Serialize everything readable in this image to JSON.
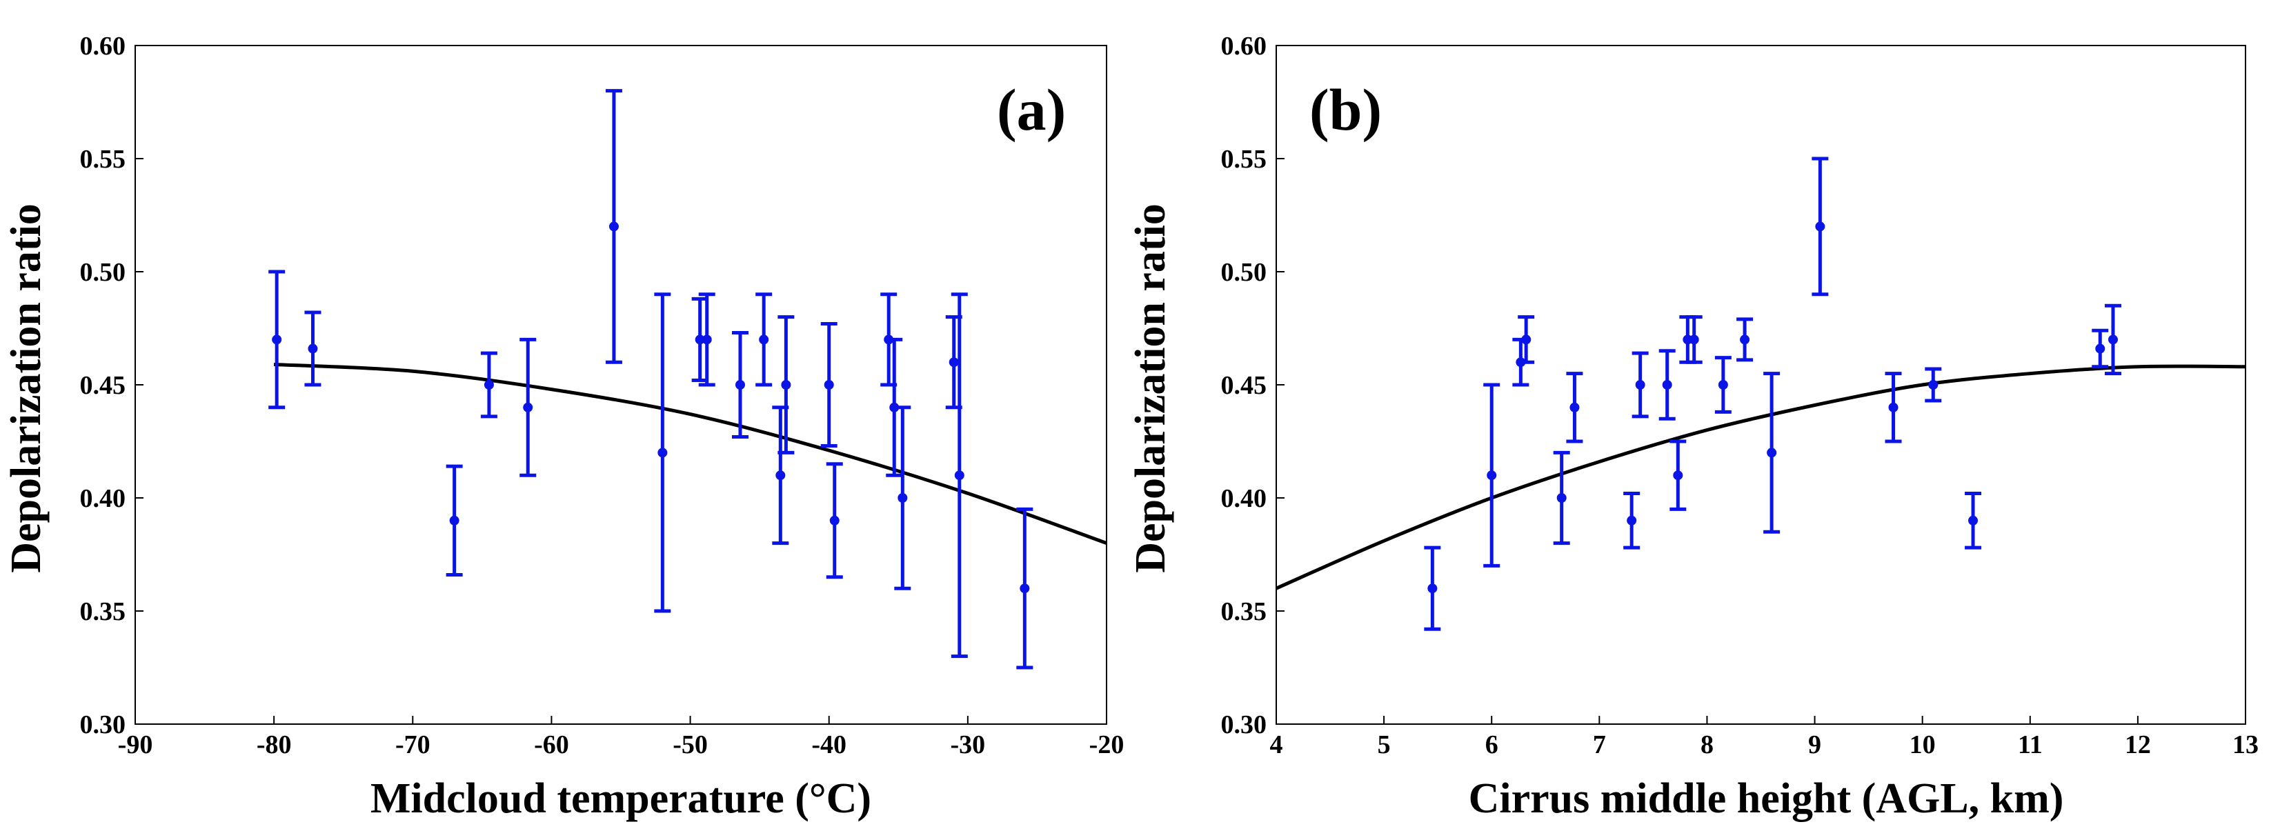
{
  "chart_data": [
    {
      "type": "scatter",
      "panel_label": "(a)",
      "xlabel": "Midcloud temperature (°C)",
      "ylabel": "Depolarization ratio",
      "xlim": [
        -90,
        -20
      ],
      "ylim": [
        0.3,
        0.6
      ],
      "xticks": [
        -90,
        -80,
        -70,
        -60,
        -50,
        -40,
        -30,
        -20
      ],
      "yticks": [
        0.3,
        0.35,
        0.4,
        0.45,
        0.5,
        0.55,
        0.6
      ],
      "tick_decimals": 2,
      "grid": false,
      "point_color": "#0a14e6",
      "fit_color": "#000000",
      "points": [
        {
          "x": -79.8,
          "y": 0.47,
          "err": 0.03
        },
        {
          "x": -77.2,
          "y": 0.466,
          "err": 0.016
        },
        {
          "x": -67.0,
          "y": 0.39,
          "err": 0.024
        },
        {
          "x": -64.5,
          "y": 0.45,
          "err": 0.014
        },
        {
          "x": -61.7,
          "y": 0.44,
          "err": 0.03
        },
        {
          "x": -55.5,
          "y": 0.52,
          "err": 0.06
        },
        {
          "x": -52.0,
          "y": 0.42,
          "err": 0.07
        },
        {
          "x": -49.3,
          "y": 0.47,
          "err": 0.018
        },
        {
          "x": -48.8,
          "y": 0.47,
          "err": 0.02
        },
        {
          "x": -46.4,
          "y": 0.45,
          "err": 0.023
        },
        {
          "x": -44.7,
          "y": 0.47,
          "err": 0.02
        },
        {
          "x": -43.5,
          "y": 0.41,
          "err": 0.03
        },
        {
          "x": -43.1,
          "y": 0.45,
          "err": 0.03
        },
        {
          "x": -40.0,
          "y": 0.45,
          "err": 0.027
        },
        {
          "x": -39.6,
          "y": 0.39,
          "err": 0.025
        },
        {
          "x": -35.7,
          "y": 0.47,
          "err": 0.02
        },
        {
          "x": -35.3,
          "y": 0.44,
          "err": 0.03
        },
        {
          "x": -34.7,
          "y": 0.4,
          "err": 0.04
        },
        {
          "x": -31.0,
          "y": 0.46,
          "err": 0.02
        },
        {
          "x": -30.6,
          "y": 0.41,
          "err": 0.08
        },
        {
          "x": -25.9,
          "y": 0.36,
          "err": 0.035
        }
      ],
      "fit": {
        "x": [
          -80,
          -70,
          -60,
          -50,
          -40,
          -30,
          -20
        ],
        "y": [
          0.459,
          0.456,
          0.448,
          0.437,
          0.421,
          0.402,
          0.38
        ]
      }
    },
    {
      "type": "scatter",
      "panel_label": "(b)",
      "xlabel": "Cirrus middle height (AGL, km)",
      "ylabel": "Depolarization ratio",
      "xlim": [
        4,
        13
      ],
      "ylim": [
        0.3,
        0.6
      ],
      "xticks": [
        4,
        5,
        6,
        7,
        8,
        9,
        10,
        11,
        12,
        13
      ],
      "yticks": [
        0.3,
        0.35,
        0.4,
        0.45,
        0.5,
        0.55,
        0.6
      ],
      "tick_decimals": 2,
      "grid": false,
      "point_color": "#0a14e6",
      "fit_color": "#000000",
      "points": [
        {
          "x": 5.45,
          "y": 0.36,
          "err": 0.018
        },
        {
          "x": 6.0,
          "y": 0.41,
          "err": 0.04
        },
        {
          "x": 6.27,
          "y": 0.46,
          "err": 0.01
        },
        {
          "x": 6.32,
          "y": 0.47,
          "err": 0.01
        },
        {
          "x": 6.65,
          "y": 0.4,
          "err": 0.02
        },
        {
          "x": 6.77,
          "y": 0.44,
          "err": 0.015
        },
        {
          "x": 7.3,
          "y": 0.39,
          "err": 0.012
        },
        {
          "x": 7.38,
          "y": 0.45,
          "err": 0.014
        },
        {
          "x": 7.63,
          "y": 0.45,
          "err": 0.015
        },
        {
          "x": 7.73,
          "y": 0.41,
          "err": 0.015
        },
        {
          "x": 7.82,
          "y": 0.47,
          "err": 0.01
        },
        {
          "x": 7.88,
          "y": 0.47,
          "err": 0.01
        },
        {
          "x": 8.15,
          "y": 0.45,
          "err": 0.012
        },
        {
          "x": 8.35,
          "y": 0.47,
          "err": 0.009
        },
        {
          "x": 8.6,
          "y": 0.42,
          "err": 0.035
        },
        {
          "x": 9.05,
          "y": 0.52,
          "err": 0.03
        },
        {
          "x": 9.73,
          "y": 0.44,
          "err": 0.015
        },
        {
          "x": 10.1,
          "y": 0.45,
          "err": 0.007
        },
        {
          "x": 10.47,
          "y": 0.39,
          "err": 0.012
        },
        {
          "x": 11.65,
          "y": 0.466,
          "err": 0.008
        },
        {
          "x": 11.77,
          "y": 0.47,
          "err": 0.015
        }
      ],
      "fit": {
        "x": [
          4,
          5,
          6,
          7,
          8,
          9,
          10,
          11,
          12,
          13
        ],
        "y": [
          0.36,
          0.381,
          0.4,
          0.416,
          0.43,
          0.441,
          0.45,
          0.455,
          0.458,
          0.458
        ]
      }
    }
  ]
}
